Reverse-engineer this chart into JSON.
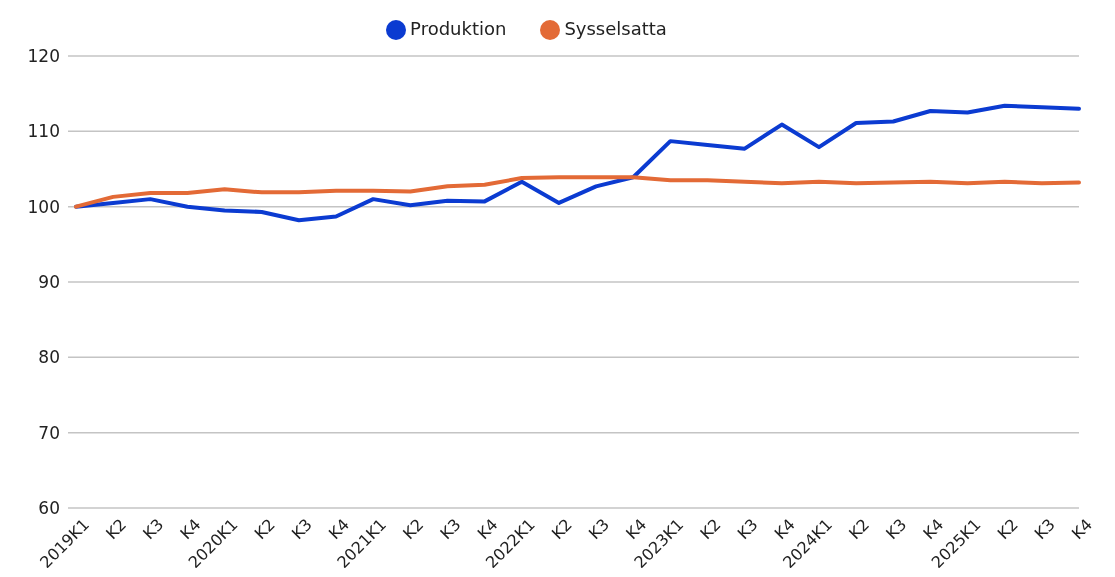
{
  "chart_data": {
    "type": "line",
    "categories": [
      "2019K1",
      "K2",
      "K3",
      "K4",
      "2020K1",
      "K2",
      "K3",
      "K4",
      "2021K1",
      "K2",
      "K3",
      "K4",
      "2022K1",
      "K2",
      "K3",
      "K4",
      "2023K1",
      "K2",
      "K3",
      "K4",
      "2024K1",
      "K2",
      "K3",
      "K4",
      "2025K1",
      "K2",
      "K3",
      "K4"
    ],
    "series": [
      {
        "name": "Produktion",
        "color": "#0b3bd1",
        "values": [
          100,
          100.5,
          101,
          100,
          99.5,
          99.3,
          98.2,
          98.7,
          101,
          100.2,
          100.8,
          100.7,
          103.3,
          100.5,
          102.7,
          103.9,
          108.7,
          108.2,
          107.7,
          110.9,
          107.9,
          111.1,
          111.3,
          112.7,
          112.5,
          113.4,
          113.2,
          113.0
        ]
      },
      {
        "name": "Sysselsatta",
        "color": "#e36a36",
        "values": [
          100,
          101.3,
          101.8,
          101.8,
          102.3,
          101.9,
          101.9,
          102.1,
          102.1,
          102.0,
          102.7,
          102.9,
          103.8,
          103.9,
          103.9,
          103.9,
          103.5,
          103.5,
          103.3,
          103.1,
          103.3,
          103.1,
          103.2,
          103.3,
          103.1,
          103.3,
          103.1,
          103.2
        ]
      }
    ],
    "ylim": [
      60,
      120
    ],
    "yticks": [
      60,
      70,
      80,
      90,
      100,
      110,
      120
    ],
    "grid": "y",
    "legend": "top",
    "marker": "none",
    "line_style": "solid"
  }
}
